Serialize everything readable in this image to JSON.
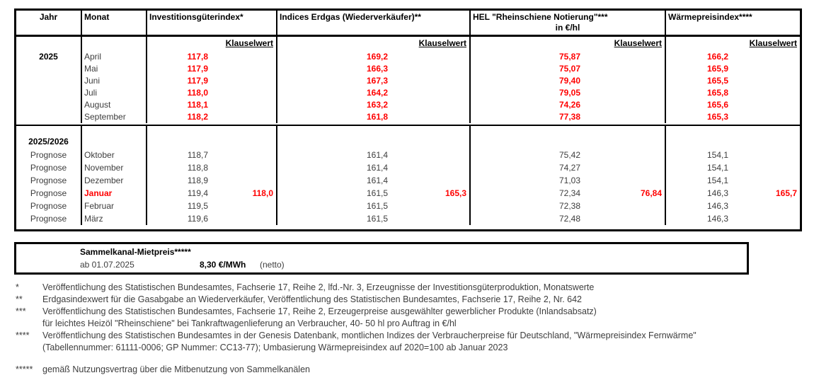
{
  "colors": {
    "highlight_red": "#ff0000",
    "text_black": "#000000",
    "text_gray": "#3d3d3d"
  },
  "table": {
    "headers": {
      "jahr": "Jahr",
      "monat": "Monat",
      "invest": "Investitionsgüterindex*",
      "erdgas": "Indices Erdgas (Wiederverkäufer)**",
      "hel_line1": "HEL \"Rheinschiene Notierung\"***",
      "hel_line2": "in €/hl",
      "waerme": "Wärmepreisindex****",
      "klauselwert": "Klauselwert"
    },
    "section1": {
      "jahr": "2025",
      "rows": [
        {
          "monat": "April",
          "invest": "117,8",
          "erdgas": "169,2",
          "hel": "75,87",
          "waerme": "166,2"
        },
        {
          "monat": "Mai",
          "invest": "117,9",
          "erdgas": "166,3",
          "hel": "75,07",
          "waerme": "165,9"
        },
        {
          "monat": "Juni",
          "invest": "117,9",
          "erdgas": "167,3",
          "hel": "79,40",
          "waerme": "165,5"
        },
        {
          "monat": "Juli",
          "invest": "118,0",
          "erdgas": "164,2",
          "hel": "79,05",
          "waerme": "165,8"
        },
        {
          "monat": "August",
          "invest": "118,1",
          "erdgas": "163,2",
          "hel": "74,26",
          "waerme": "165,6"
        },
        {
          "monat": "September",
          "invest": "118,2",
          "erdgas": "161,8",
          "hel": "77,38",
          "waerme": "165,3"
        }
      ]
    },
    "section2": {
      "jahr": "2025/2026",
      "rows": [
        {
          "jahr": "Prognose",
          "monat": "Oktober",
          "invest": "118,7",
          "erdgas": "161,4",
          "hel": "75,42",
          "waerme": "154,1"
        },
        {
          "jahr": "Prognose",
          "monat": "November",
          "invest": "118,8",
          "erdgas": "161,4",
          "hel": "74,27",
          "waerme": "154,1"
        },
        {
          "jahr": "Prognose",
          "monat": "Dezember",
          "invest": "118,9",
          "erdgas": "161,4",
          "hel": "71,03",
          "waerme": "154,1"
        },
        {
          "jahr": "Prognose",
          "monat": "Januar",
          "invest": "119,4",
          "invest_klausel": "118,0",
          "erdgas": "161,5",
          "erdgas_klausel": "165,3",
          "hel": "72,34",
          "hel_klausel": "76,84",
          "waerme": "146,3",
          "waerme_klausel": "165,7"
        },
        {
          "jahr": "Prognose",
          "monat": "Februar",
          "invest": "119,5",
          "erdgas": "161,5",
          "hel": "72,38",
          "waerme": "146,3"
        },
        {
          "jahr": "Prognose",
          "monat": "März",
          "invest": "119,6",
          "erdgas": "161,5",
          "hel": "72,48",
          "waerme": "146,3"
        }
      ]
    }
  },
  "sammelkanal": {
    "title": "Sammelkanal-Mietpreis*****",
    "valid_from": "ab 01.07.2025",
    "price": "8,30 €/MWh",
    "note": "(netto)"
  },
  "footnotes": [
    {
      "marker": "*",
      "text": "Veröffentlichung des Statistischen Bundesamtes, Fachserie 17, Reihe 2, lfd.-Nr. 3, Erzeugnisse der Investitionsgüterproduktion, Monatswerte"
    },
    {
      "marker": "**",
      "text": "Erdgasindexwert für die Gasabgabe an Wiederverkäufer, Veröffentlichung des Statistischen Bundesamtes, Fachserie 17, Reihe 2, Nr. 642"
    },
    {
      "marker": "***",
      "text": "Veröffentlichung des Statistischen Bundesamtes, Fachserie 17, Reihe 2, Erzeugerpreise ausgewählter gewerblicher Produkte (Inlandsabsatz)"
    },
    {
      "marker": "",
      "text": "für leichtes Heizöl \"Rheinschiene\" bei Tankraftwagenlieferung an Verbraucher, 40- 50 hl pro Auftrag in €/hl"
    },
    {
      "marker": "****",
      "text": "Veröffentlichung des Statistischen Bundesamtes in der Genesis Datenbank, montlichen Indizes der Verbraucherpreise für Deutschland, \"Wärmepreisindex Fernwärme\""
    },
    {
      "marker": "",
      "text": "(Tabellennummer: 61111-0006; GP Nummer: CC13-77); Umbasierung Wärmepreisindex auf 2020=100 ab Januar 2023"
    },
    {
      "marker": "*****",
      "text": "gemäß Nutzungsvertrag über die Mitbenutzung von Sammelkanälen"
    }
  ]
}
